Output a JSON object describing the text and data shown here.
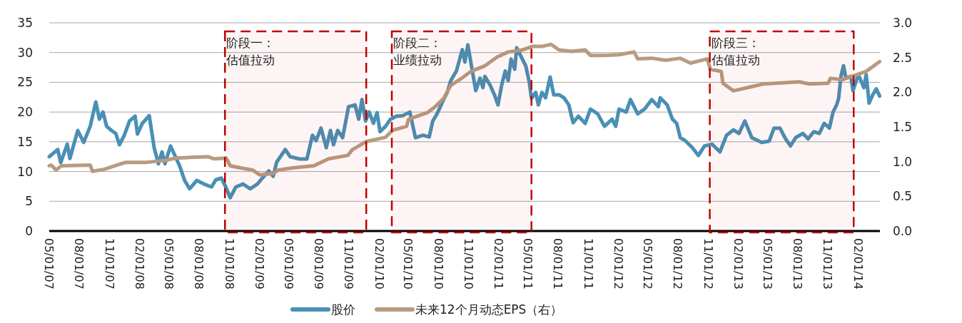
{
  "chart_data": {
    "type": "line",
    "xlim": [
      "2007-05-01",
      "2014-04-08"
    ],
    "xticks": [
      {
        "value": "2007-05-01",
        "label": "05/01/07"
      },
      {
        "value": "2007-08-01",
        "label": "08/01/07"
      },
      {
        "value": "2007-11-01",
        "label": "11/01/07"
      },
      {
        "value": "2008-02-01",
        "label": "02/01/08"
      },
      {
        "value": "2008-05-01",
        "label": "05/01/08"
      },
      {
        "value": "2008-08-01",
        "label": "08/01/08"
      },
      {
        "value": "2008-11-01",
        "label": "11/01/08"
      },
      {
        "value": "2009-02-01",
        "label": "02/01/09"
      },
      {
        "value": "2009-05-01",
        "label": "05/01/09"
      },
      {
        "value": "2009-08-01",
        "label": "08/01/09"
      },
      {
        "value": "2009-11-01",
        "label": "11/01/09"
      },
      {
        "value": "2010-02-01",
        "label": "02/01/10"
      },
      {
        "value": "2010-05-01",
        "label": "05/01/10"
      },
      {
        "value": "2010-08-01",
        "label": "08/01/10"
      },
      {
        "value": "2010-11-01",
        "label": "11/01/10"
      },
      {
        "value": "2011-02-01",
        "label": "02/01/11"
      },
      {
        "value": "2011-05-01",
        "label": "05/01/11"
      },
      {
        "value": "2011-08-01",
        "label": "08/01/11"
      },
      {
        "value": "2011-11-01",
        "label": "11/01/11"
      },
      {
        "value": "2012-02-01",
        "label": "02/01/12"
      },
      {
        "value": "2012-05-01",
        "label": "05/01/12"
      },
      {
        "value": "2012-08-01",
        "label": "08/01/12"
      },
      {
        "value": "2012-11-01",
        "label": "11/01/12"
      },
      {
        "value": "2013-02-01",
        "label": "02/01/13"
      },
      {
        "value": "2013-05-01",
        "label": "05/01/13"
      },
      {
        "value": "2013-08-01",
        "label": "08/01/13"
      },
      {
        "value": "2013-11-01",
        "label": "11/01/13"
      },
      {
        "value": "2014-02-01",
        "label": "02/01/14"
      }
    ],
    "ylim": [
      0,
      35
    ],
    "yticks": [
      0,
      5,
      10,
      15,
      20,
      25,
      30,
      35
    ],
    "y2lim": [
      0,
      3
    ],
    "y2ticks": [
      {
        "value": 0,
        "label": "0.0"
      },
      {
        "value": 0.5,
        "label": "0.5"
      },
      {
        "value": 1,
        "label": "1.0"
      },
      {
        "value": 1.5,
        "label": "1.5"
      },
      {
        "value": 2,
        "label": "2.0"
      },
      {
        "value": 2.5,
        "label": "2.5"
      },
      {
        "value": 3,
        "label": "3.0"
      }
    ],
    "grid": "y",
    "legend": "bottom",
    "marker": "none",
    "line_style": "solid",
    "bands": [
      {
        "axis": "x",
        "from": "2008-10-18",
        "to": "2009-12-23",
        "label": "阶段一：估值拉动",
        "color": "#c00000"
      },
      {
        "axis": "x",
        "from": "2010-03-11",
        "to": "2011-05-11",
        "label": "阶段二：业绩拉动",
        "color": "#c00000"
      },
      {
        "axis": "x",
        "from": "2012-11-05",
        "to": "2014-01-18",
        "label": "阶段三：估值拉动",
        "color": "#c00000"
      }
    ],
    "series": [
      {
        "name": "股价",
        "color": "#4a8fb5",
        "x": [
          "2007-05-01",
          "2007-05-27",
          "2007-06-05",
          "2007-06-25",
          "2007-07-03",
          "2007-07-27",
          "2007-08-14",
          "2007-09-03",
          "2007-09-20",
          "2007-10-01",
          "2007-10-12",
          "2007-10-23",
          "2007-11-07",
          "2007-11-20",
          "2007-12-01",
          "2007-12-16",
          "2008-01-01",
          "2008-01-18",
          "2008-01-25",
          "2008-02-09",
          "2008-03-01",
          "2008-03-16",
          "2008-03-29",
          "2008-04-09",
          "2008-04-18",
          "2008-05-05",
          "2008-05-20",
          "2008-06-02",
          "2008-06-17",
          "2008-07-02",
          "2008-07-24",
          "2008-08-15",
          "2008-09-07",
          "2008-09-20",
          "2008-10-07",
          "2008-10-18",
          "2008-11-03",
          "2008-11-20",
          "2008-12-12",
          "2009-01-03",
          "2009-01-25",
          "2009-02-09",
          "2009-03-01",
          "2009-03-14",
          "2009-03-25",
          "2009-04-20",
          "2009-05-05",
          "2009-06-03",
          "2009-06-25",
          "2009-07-12",
          "2009-07-23",
          "2009-08-07",
          "2009-08-23",
          "2009-09-05",
          "2009-09-14",
          "2009-09-27",
          "2009-10-12",
          "2009-10-30",
          "2009-11-19",
          "2009-11-30",
          "2009-12-10",
          "2009-12-21",
          "2010-01-01",
          "2010-01-14",
          "2010-01-25",
          "2010-02-03",
          "2010-02-20",
          "2010-03-07",
          "2010-03-25",
          "2010-04-14",
          "2010-05-05",
          "2010-05-22",
          "2010-06-14",
          "2010-07-03",
          "2010-07-14",
          "2010-07-27",
          "2010-08-16",
          "2010-08-27",
          "2010-09-07",
          "2010-09-24",
          "2010-10-12",
          "2010-10-20",
          "2010-10-29",
          "2010-11-07",
          "2010-11-22",
          "2010-12-05",
          "2010-12-14",
          "2010-12-20",
          "2011-01-05",
          "2011-01-18",
          "2011-01-29",
          "2011-02-09",
          "2011-02-20",
          "2011-03-01",
          "2011-03-10",
          "2011-03-21",
          "2011-03-27",
          "2011-04-07",
          "2011-04-24",
          "2011-05-05",
          "2011-05-11",
          "2011-05-24",
          "2011-06-01",
          "2011-06-12",
          "2011-06-23",
          "2011-07-07",
          "2011-07-18",
          "2011-08-03",
          "2011-08-18",
          "2011-09-02",
          "2011-09-15",
          "2011-10-01",
          "2011-10-22",
          "2011-11-07",
          "2011-11-29",
          "2011-12-20",
          "2012-01-12",
          "2012-01-23",
          "2012-02-02",
          "2012-02-24",
          "2012-03-08",
          "2012-03-30",
          "2012-04-20",
          "2012-05-12",
          "2012-06-01",
          "2012-06-07",
          "2012-06-28",
          "2012-07-14",
          "2012-07-27",
          "2012-08-07",
          "2012-08-22",
          "2012-09-13",
          "2012-10-01",
          "2012-10-20",
          "2012-11-12",
          "2012-12-06",
          "2012-12-26",
          "2013-01-16",
          "2013-02-02",
          "2013-02-20",
          "2013-03-13",
          "2013-04-12",
          "2013-05-05",
          "2013-05-20",
          "2013-06-07",
          "2013-06-22",
          "2013-07-09",
          "2013-07-25",
          "2013-08-16",
          "2013-09-01",
          "2013-09-18",
          "2013-10-05",
          "2013-10-20",
          "2013-11-05",
          "2013-11-16",
          "2013-11-27",
          "2013-12-03",
          "2013-12-10",
          "2013-12-18",
          "2013-12-25",
          "2014-01-09",
          "2014-01-16",
          "2014-02-01",
          "2014-02-18",
          "2014-02-25",
          "2014-03-06",
          "2014-03-17",
          "2014-03-28",
          "2014-04-07"
        ],
        "values": [
          12.5,
          13.7,
          11.5,
          14.6,
          12.2,
          16.9,
          14.9,
          17.6,
          21.7,
          18.8,
          20.0,
          17.6,
          16.9,
          16.4,
          14.5,
          16.1,
          18.5,
          19.3,
          16.3,
          18.1,
          19.4,
          14.0,
          11.3,
          13.3,
          11.3,
          14.3,
          12.5,
          10.9,
          8.5,
          7.1,
          8.5,
          7.9,
          7.4,
          8.6,
          8.9,
          7.7,
          5.6,
          7.4,
          7.9,
          7.1,
          7.9,
          8.9,
          10.1,
          9.2,
          11.6,
          13.7,
          12.5,
          12.1,
          12.1,
          16.1,
          15.2,
          17.3,
          14.0,
          16.9,
          14.5,
          16.9,
          15.7,
          20.9,
          21.2,
          18.8,
          22.1,
          18.5,
          20.0,
          18.1,
          19.9,
          16.7,
          17.6,
          18.8,
          19.3,
          19.4,
          20.0,
          15.7,
          16.1,
          15.8,
          18.5,
          19.7,
          22.1,
          23.3,
          25.3,
          26.9,
          30.5,
          28.4,
          31.3,
          28.4,
          23.6,
          25.7,
          24.1,
          26.0,
          24.5,
          22.9,
          21.2,
          24.5,
          26.9,
          25.3,
          28.9,
          27.2,
          30.8,
          29.6,
          27.7,
          24.8,
          22.3,
          23.3,
          21.2,
          23.3,
          22.4,
          25.9,
          22.9,
          22.9,
          22.4,
          21.2,
          18.2,
          19.3,
          18.1,
          20.5,
          19.7,
          17.6,
          18.8,
          17.6,
          20.5,
          20.0,
          22.1,
          19.7,
          20.5,
          22.1,
          20.9,
          22.4,
          21.2,
          18.8,
          18.1,
          15.7,
          15.2,
          14.0,
          12.7,
          14.3,
          14.6,
          13.3,
          16.1,
          17.0,
          16.4,
          18.5,
          15.7,
          14.9,
          15.1,
          17.3,
          17.3,
          15.7,
          14.3,
          15.7,
          16.4,
          15.5,
          16.7,
          16.4,
          18.1,
          17.3,
          20.0,
          21.2,
          22.3,
          26.0,
          27.8,
          25.7,
          26.0,
          23.6,
          26.3,
          24.1,
          26.3,
          21.5,
          22.9,
          23.9,
          22.7
        ]
      },
      {
        "name": "未来12个月动态EPS（右）",
        "color": "#b89b80",
        "axis": "y2",
        "x": [
          "2007-05-01",
          "2007-05-07",
          "2007-05-22",
          "2007-06-07",
          "2007-09-03",
          "2007-09-10",
          "2007-10-16",
          "2007-12-20",
          "2008-02-23",
          "2008-04-20",
          "2008-05-20",
          "2008-07-02",
          "2008-08-29",
          "2008-09-14",
          "2008-10-22",
          "2008-11-03",
          "2008-12-05",
          "2009-01-10",
          "2009-02-01",
          "2009-03-14",
          "2009-03-30",
          "2009-05-12",
          "2009-07-16",
          "2009-08-07",
          "2009-08-30",
          "2009-10-28",
          "2009-11-10",
          "2009-12-23",
          "2010-02-20",
          "2010-03-13",
          "2010-04-25",
          "2010-05-01",
          "2010-06-29",
          "2010-07-21",
          "2010-08-16",
          "2010-09-07",
          "2010-10-10",
          "2010-11-07",
          "2010-12-20",
          "2011-01-27",
          "2011-03-01",
          "2011-04-14",
          "2011-05-14",
          "2011-06-12",
          "2011-07-10",
          "2011-08-03",
          "2011-09-10",
          "2011-10-22",
          "2011-11-07",
          "2011-12-20",
          "2012-02-02",
          "2012-03-19",
          "2012-03-30",
          "2012-05-12",
          "2012-06-24",
          "2012-08-07",
          "2012-09-07",
          "2012-10-28",
          "2012-11-07",
          "2012-12-10",
          "2012-12-15",
          "2013-01-16",
          "2013-03-13",
          "2013-04-19",
          "2013-08-05",
          "2013-09-03",
          "2013-11-01",
          "2013-11-08",
          "2013-12-14",
          "2014-02-25",
          "2014-04-07"
        ],
        "values": [
          0.94,
          0.95,
          0.88,
          0.94,
          0.95,
          0.86,
          0.89,
          0.99,
          0.99,
          1.02,
          1.05,
          1.06,
          1.07,
          1.04,
          1.05,
          0.94,
          0.91,
          0.88,
          0.81,
          0.83,
          0.88,
          0.91,
          0.94,
          0.99,
          1.04,
          1.09,
          1.17,
          1.29,
          1.35,
          1.45,
          1.51,
          1.61,
          1.71,
          1.79,
          1.91,
          2.1,
          2.2,
          2.3,
          2.38,
          2.51,
          2.58,
          2.61,
          2.66,
          2.66,
          2.69,
          2.61,
          2.59,
          2.61,
          2.53,
          2.53,
          2.54,
          2.58,
          2.48,
          2.49,
          2.46,
          2.49,
          2.42,
          2.48,
          2.33,
          2.3,
          2.13,
          2.02,
          2.08,
          2.12,
          2.15,
          2.12,
          2.13,
          2.2,
          2.18,
          2.3,
          2.44
        ]
      }
    ]
  }
}
